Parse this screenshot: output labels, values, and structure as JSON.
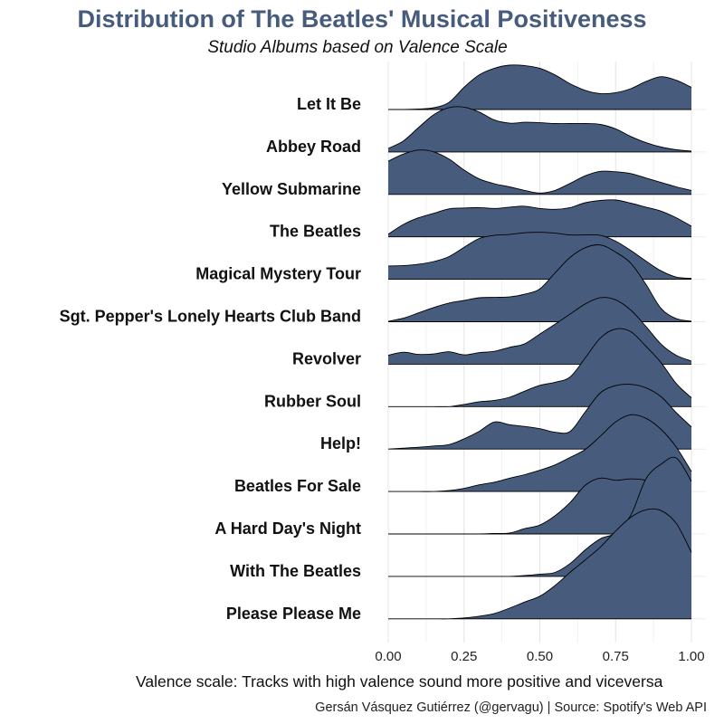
{
  "chart_data": {
    "type": "ridgeline",
    "title": "Distribution of The Beatles' Musical Positiveness",
    "subtitle": "Studio Albums based on Valence Scale",
    "xlabel": "Valence scale: Tracks with high valence sound more positive and viceversa",
    "caption": "Gersán Vásquez Gutiérrez (@gervagu) | Source: Spotify's Web API",
    "xlim": [
      0,
      1
    ],
    "x_ticks": [
      "0.00",
      "0.25",
      "0.50",
      "0.75",
      "1.00"
    ],
    "fill_color": "#475b7d",
    "grid": true,
    "x": [
      0.0,
      0.05,
      0.1,
      0.15,
      0.2,
      0.25,
      0.3,
      0.35,
      0.4,
      0.45,
      0.5,
      0.55,
      0.6,
      0.65,
      0.7,
      0.75,
      0.8,
      0.85,
      0.9,
      0.95,
      1.0
    ],
    "series": [
      {
        "name": "Let It Be",
        "values": [
          0.0,
          0.0,
          0.01,
          0.04,
          0.16,
          0.5,
          0.78,
          0.93,
          1.0,
          0.99,
          0.93,
          0.78,
          0.58,
          0.43,
          0.36,
          0.38,
          0.47,
          0.63,
          0.74,
          0.66,
          0.5
        ]
      },
      {
        "name": "Abbey Road",
        "values": [
          0.08,
          0.25,
          0.55,
          0.84,
          1.0,
          1.01,
          0.9,
          0.72,
          0.65,
          0.67,
          0.66,
          0.64,
          0.64,
          0.64,
          0.62,
          0.52,
          0.35,
          0.21,
          0.11,
          0.05,
          0.02
        ]
      },
      {
        "name": "Yellow Submarine",
        "values": [
          0.75,
          0.91,
          1.0,
          0.96,
          0.8,
          0.55,
          0.35,
          0.24,
          0.17,
          0.09,
          0.03,
          0.09,
          0.25,
          0.42,
          0.52,
          0.51,
          0.47,
          0.37,
          0.27,
          0.17,
          0.09
        ]
      },
      {
        "name": "The Beatles",
        "values": [
          0.06,
          0.28,
          0.43,
          0.53,
          0.63,
          0.65,
          0.66,
          0.64,
          0.67,
          0.69,
          0.64,
          0.62,
          0.66,
          0.77,
          0.82,
          0.83,
          0.76,
          0.67,
          0.58,
          0.43,
          0.24
        ]
      },
      {
        "name": "Magical Mystery Tour",
        "values": [
          0.3,
          0.31,
          0.34,
          0.4,
          0.51,
          0.72,
          0.92,
          0.99,
          1.01,
          1.05,
          1.06,
          1.04,
          1.0,
          1.0,
          0.99,
          0.86,
          0.65,
          0.41,
          0.19,
          0.05,
          0.02
        ]
      },
      {
        "name": "Sgt. Pepper's Lonely Hearts Club Band",
        "values": [
          0.01,
          0.08,
          0.2,
          0.32,
          0.42,
          0.48,
          0.54,
          0.55,
          0.56,
          0.62,
          0.74,
          1.1,
          1.45,
          1.67,
          1.73,
          1.57,
          1.32,
          0.84,
          0.3,
          0.07,
          0.01
        ]
      },
      {
        "name": "Revolver",
        "values": [
          0.2,
          0.27,
          0.22,
          0.23,
          0.28,
          0.21,
          0.26,
          0.29,
          0.38,
          0.46,
          0.68,
          0.9,
          1.13,
          1.36,
          1.5,
          1.45,
          1.22,
          0.85,
          0.45,
          0.2,
          0.07
        ]
      },
      {
        "name": "Rubber Soul",
        "values": [
          0.0,
          0.0,
          0.0,
          0.0,
          0.0,
          0.05,
          0.11,
          0.14,
          0.21,
          0.35,
          0.48,
          0.55,
          0.67,
          1.1,
          1.55,
          1.75,
          1.69,
          1.36,
          0.99,
          0.52,
          0.2
        ]
      },
      {
        "name": "Help!",
        "values": [
          0.0,
          0.02,
          0.04,
          0.07,
          0.1,
          0.23,
          0.4,
          0.61,
          0.55,
          0.51,
          0.46,
          0.38,
          0.4,
          0.84,
          1.27,
          1.43,
          1.46,
          1.38,
          1.18,
          0.82,
          0.5
        ]
      },
      {
        "name": "Beatles For Sale",
        "values": [
          0.0,
          0.0,
          0.0,
          0.0,
          0.02,
          0.07,
          0.15,
          0.21,
          0.3,
          0.38,
          0.48,
          0.6,
          0.77,
          0.95,
          1.25,
          1.57,
          1.73,
          1.65,
          1.4,
          1.0,
          0.45
        ]
      },
      {
        "name": "A Hard Day's Night",
        "values": [
          0.0,
          0.0,
          0.0,
          0.0,
          0.0,
          0.0,
          0.0,
          0.01,
          0.02,
          0.12,
          0.2,
          0.41,
          0.71,
          1.1,
          1.26,
          1.21,
          1.24,
          1.21,
          1.08,
          0.55,
          0.16
        ]
      },
      {
        "name": "With The Beatles",
        "values": [
          0.0,
          0.0,
          0.0,
          0.0,
          0.0,
          0.0,
          0.0,
          0.0,
          0.0,
          0.02,
          0.05,
          0.09,
          0.29,
          0.6,
          0.85,
          0.98,
          1.38,
          2.2,
          2.53,
          2.67,
          2.14
        ]
      },
      {
        "name": "Please Please Me",
        "values": [
          0.0,
          0.0,
          0.0,
          0.0,
          0.0,
          0.02,
          0.06,
          0.12,
          0.24,
          0.38,
          0.51,
          0.75,
          1.05,
          1.33,
          1.62,
          1.98,
          2.29,
          2.46,
          2.44,
          2.15,
          1.5
        ]
      }
    ]
  }
}
